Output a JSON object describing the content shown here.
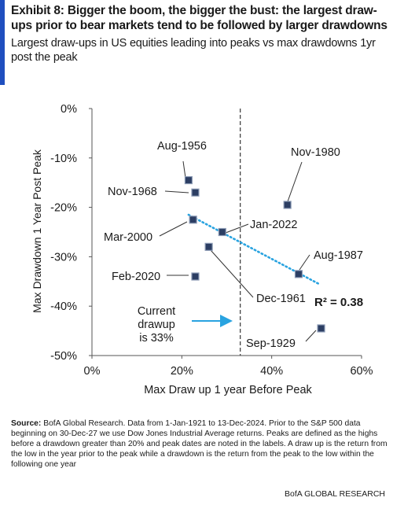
{
  "header": {
    "title": "Exhibit 8: Bigger the boom, the bigger the bust: the largest draw-ups prior to bear markets tend to be followed by larger drawdowns",
    "subtitle": "Largest draw-ups in US equities leading into peaks vs max drawdowns 1yr post the peak"
  },
  "chart_data": {
    "type": "scatter",
    "xlabel": "Max Draw up 1 year Before Peak",
    "ylabel": "Max Drawdown 1 Year Post Peak",
    "xlim": [
      0,
      60
    ],
    "ylim": [
      -50,
      0
    ],
    "x_ticks": [
      "0%",
      "20%",
      "40%",
      "60%"
    ],
    "y_ticks": [
      "0%",
      "-10%",
      "-20%",
      "-30%",
      "-40%",
      "-50%"
    ],
    "points": [
      {
        "label": "Aug-1956",
        "x": 21.5,
        "y": -14.5
      },
      {
        "label": "Nov-1968",
        "x": 23.0,
        "y": -17.0
      },
      {
        "label": "Nov-1980",
        "x": 43.5,
        "y": -19.5
      },
      {
        "label": "Mar-2000",
        "x": 22.5,
        "y": -22.5
      },
      {
        "label": "Jan-2022",
        "x": 29.0,
        "y": -25.0
      },
      {
        "label": "Dec-1961",
        "x": 26.0,
        "y": -28.0
      },
      {
        "label": "Aug-1987",
        "x": 46.0,
        "y": -33.5
      },
      {
        "label": "Feb-2020",
        "x": 23.0,
        "y": -34.0
      },
      {
        "label": "Sep-1929",
        "x": 51.0,
        "y": -44.5
      }
    ],
    "trendline": {
      "x": [
        21.5,
        50.5
      ],
      "y": [
        -21.5,
        -35.5
      ],
      "style": "dotted"
    },
    "r_squared_label": "R² = 0.38",
    "current_drawup": {
      "x": 33,
      "label": "Current drawup is 33%"
    },
    "grid": false,
    "colors": {
      "marker_fill": "#2c3e63",
      "marker_edge": "#8c9bb5",
      "trendline": "#29a3e0",
      "arrow": "#29a3e0",
      "axis": "#555555"
    }
  },
  "source": {
    "label": "Source:",
    "text": " BofA Global Research. Data from 1-Jan-1921 to 13-Dec-2024. Prior to the S&P 500 data beginning on 30-Dec-27 we use Dow Jones Industrial Average returns. Peaks are defined as the highs before a drawdown greater than 20% and peak dates are noted in the labels. A draw up is the return from the low in the year prior to the peak while a drawdown is the return from the peak to the low within the following one year"
  },
  "footer": "BofA GLOBAL RESEARCH"
}
